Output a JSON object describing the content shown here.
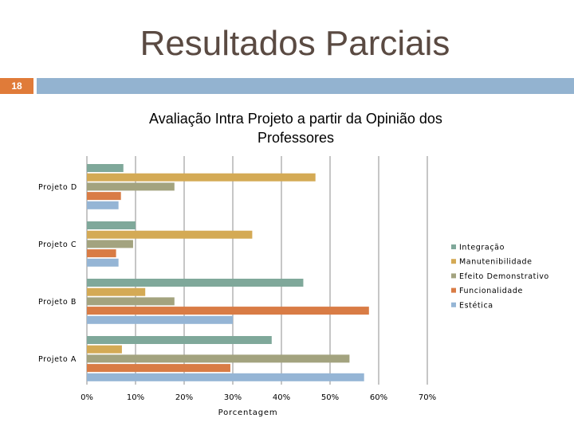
{
  "slide": {
    "title": "Resultados Parciais",
    "number": "18"
  },
  "colors": {
    "band_left": "#e07b39",
    "band_right": "#93b3d0",
    "title_text": "#5a4a42"
  },
  "chart_data": {
    "type": "bar",
    "orientation": "horizontal",
    "title": "Avaliação Intra Projeto a partir da Opinião dos Professores",
    "title_lines": [
      "Avaliação Intra Projeto a partir da Opinião dos",
      "Professores"
    ],
    "xlabel": "Porcentagem",
    "ylabel": "",
    "xlim": [
      0,
      70
    ],
    "x_ticks": [
      "0%",
      "10%",
      "20%",
      "30%",
      "40%",
      "50%",
      "60%",
      "70%"
    ],
    "grid": "vertical",
    "legend_position": "right",
    "categories": [
      "Projeto D",
      "Projeto C",
      "Projeto B",
      "Projeto A"
    ],
    "series": [
      {
        "name": "Integração",
        "color": "#7fa89a",
        "values": [
          7.5,
          10,
          44.5,
          38
        ]
      },
      {
        "name": "Manutenibilidade",
        "color": "#d4aa55",
        "values": [
          47,
          34,
          12,
          7.2
        ]
      },
      {
        "name": "Efeito Demonstrativo",
        "color": "#a3a37f",
        "values": [
          18,
          9.5,
          18,
          54
        ]
      },
      {
        "name": "Funcionalidade",
        "color": "#d97c45",
        "values": [
          7,
          6,
          58,
          29.5
        ]
      },
      {
        "name": "Estética",
        "color": "#95b5d5",
        "values": [
          6.5,
          6.5,
          30,
          57
        ]
      }
    ]
  }
}
